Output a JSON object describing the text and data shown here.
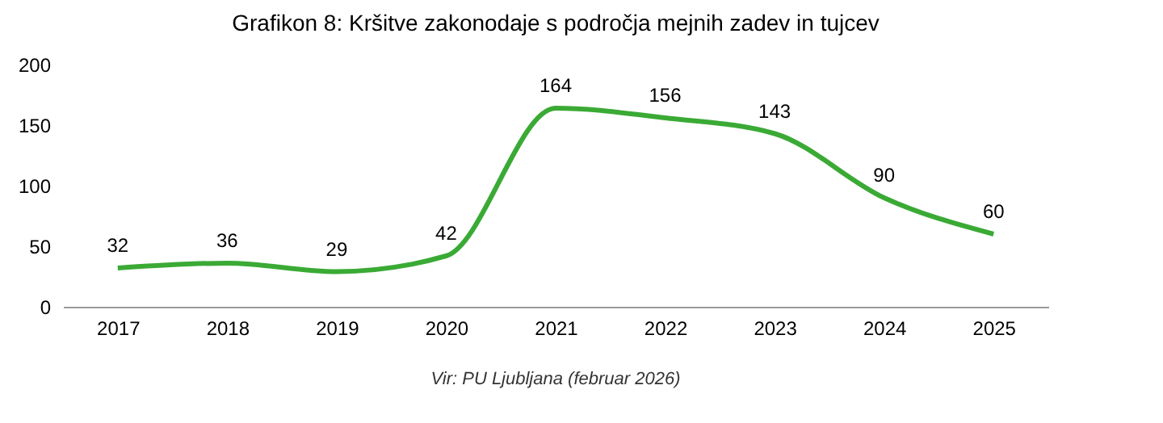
{
  "chart_data": {
    "type": "line",
    "title": "Grafikon 8: Kršitve zakonodaje s področja mejnih zadev in tujcev",
    "categories": [
      "2017",
      "2018",
      "2019",
      "2020",
      "2021",
      "2022",
      "2023",
      "2024",
      "2025"
    ],
    "series": [
      {
        "color": "#3aaa35",
        "values": [
          32,
          36,
          29,
          42,
          164,
          156,
          143,
          90,
          60
        ]
      }
    ],
    "ylim": [
      0,
      200
    ],
    "yticks": [
      0,
      50,
      100,
      150,
      200
    ],
    "grid": false,
    "marker": "none",
    "line_style": "solid",
    "data_labels": true,
    "annotations": [
      "Vir: PU Ljubljana (februar 2026)"
    ]
  }
}
